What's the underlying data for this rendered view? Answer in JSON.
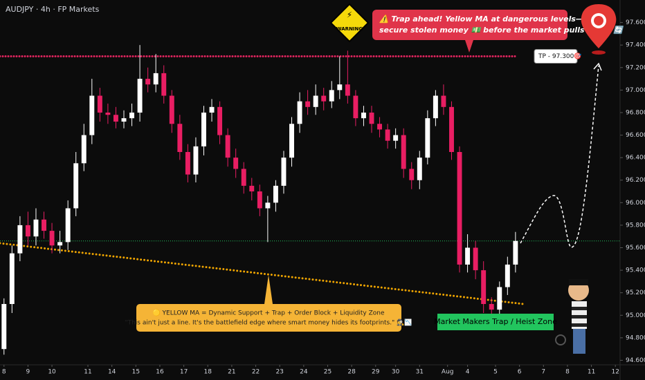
{
  "chart_data": {
    "type": "candlestick",
    "title": "AUDJPY · 4h · FP Markets",
    "up_color": "#ffffff",
    "down_color": "#e91e63",
    "x": [
      0,
      2,
      4,
      6,
      8,
      10,
      12,
      14,
      16,
      18,
      20,
      22,
      24,
      26,
      28,
      30,
      32,
      34,
      36,
      38,
      40,
      42,
      44,
      46,
      48,
      50,
      52,
      54,
      56,
      58,
      60,
      62,
      64,
      66,
      68,
      70,
      72,
      74,
      76,
      78,
      80,
      82,
      84,
      86,
      88,
      90,
      92,
      94,
      96,
      98,
      100,
      102,
      104,
      106,
      108,
      110,
      112,
      114,
      116,
      118,
      120,
      122,
      124,
      126,
      128
    ],
    "open": [
      94.7,
      95.1,
      95.55,
      95.8,
      95.7,
      95.85,
      95.75,
      95.62,
      95.65,
      95.95,
      96.35,
      96.6,
      96.95,
      96.8,
      96.78,
      96.72,
      96.75,
      96.8,
      97.1,
      97.05,
      97.15,
      96.95,
      96.7,
      96.45,
      96.25,
      96.5,
      96.8,
      96.85,
      96.6,
      96.4,
      96.3,
      96.15,
      96.1,
      95.95,
      96.0,
      96.15,
      96.4,
      96.7,
      96.9,
      96.85,
      96.95,
      96.9,
      97.0,
      97.05,
      96.95,
      96.75,
      96.8,
      96.7,
      96.65,
      96.55,
      96.6,
      96.3,
      96.2,
      96.4,
      96.75,
      96.95,
      96.85,
      96.45,
      95.45,
      95.6,
      95.4,
      95.1,
      95.05,
      95.25,
      95.45
    ],
    "high": [
      95.15,
      95.62,
      95.88,
      95.92,
      95.95,
      95.92,
      95.82,
      95.75,
      96.02,
      96.45,
      96.7,
      97.1,
      97.02,
      96.88,
      96.85,
      96.82,
      96.88,
      97.4,
      97.2,
      97.32,
      97.22,
      97.0,
      96.78,
      96.52,
      96.58,
      96.86,
      96.92,
      96.9,
      96.66,
      96.48,
      96.36,
      96.22,
      96.16,
      96.06,
      96.2,
      96.46,
      96.76,
      96.98,
      97.0,
      97.05,
      97.02,
      97.08,
      97.3,
      97.35,
      97.0,
      96.86,
      96.86,
      96.76,
      96.7,
      96.66,
      96.66,
      96.36,
      96.46,
      96.82,
      97.0,
      97.05,
      96.9,
      96.5,
      95.72,
      95.66,
      95.48,
      95.16,
      95.3,
      95.52,
      95.74
    ],
    "low": [
      94.65,
      95.02,
      95.48,
      95.62,
      95.62,
      95.68,
      95.55,
      95.55,
      95.58,
      95.88,
      96.28,
      96.52,
      96.72,
      96.7,
      96.66,
      96.66,
      96.68,
      96.72,
      96.98,
      96.98,
      96.88,
      96.62,
      96.38,
      96.18,
      96.18,
      96.42,
      96.72,
      96.52,
      96.32,
      96.22,
      96.08,
      96.02,
      95.88,
      95.65,
      95.92,
      96.08,
      96.32,
      96.62,
      96.78,
      96.78,
      96.82,
      96.84,
      96.92,
      96.88,
      96.68,
      96.68,
      96.62,
      96.58,
      96.48,
      96.48,
      96.22,
      96.12,
      96.12,
      96.34,
      96.68,
      96.78,
      96.38,
      95.38,
      95.38,
      95.32,
      95.02,
      95.0,
      95.0,
      95.18,
      95.38
    ],
    "close": [
      95.1,
      95.55,
      95.8,
      95.7,
      95.85,
      95.75,
      95.62,
      95.65,
      95.95,
      96.35,
      96.6,
      96.95,
      96.8,
      96.78,
      96.72,
      96.75,
      96.8,
      97.1,
      97.05,
      97.15,
      96.95,
      96.7,
      96.45,
      96.25,
      96.5,
      96.8,
      96.85,
      96.6,
      96.4,
      96.3,
      96.15,
      96.1,
      95.95,
      96.0,
      96.15,
      96.4,
      96.7,
      96.9,
      96.85,
      96.95,
      96.9,
      97.0,
      97.05,
      96.95,
      96.75,
      96.8,
      96.7,
      96.65,
      96.55,
      96.6,
      96.3,
      96.2,
      96.4,
      96.75,
      96.95,
      96.85,
      96.45,
      95.45,
      95.6,
      95.4,
      95.1,
      95.05,
      95.25,
      95.45,
      95.66
    ],
    "xlim": [
      -1,
      154
    ],
    "xticks": [
      {
        "value": 0,
        "label": "8"
      },
      {
        "value": 6,
        "label": "9"
      },
      {
        "value": 12,
        "label": "10"
      },
      {
        "value": 21,
        "label": "11"
      },
      {
        "value": 27,
        "label": "14"
      },
      {
        "value": 33,
        "label": "15"
      },
      {
        "value": 39,
        "label": "16"
      },
      {
        "value": 45,
        "label": "17"
      },
      {
        "value": 51,
        "label": "18"
      },
      {
        "value": 57,
        "label": "21"
      },
      {
        "value": 63,
        "label": "22"
      },
      {
        "value": 69,
        "label": "23"
      },
      {
        "value": 75,
        "label": "24"
      },
      {
        "value": 81,
        "label": "25"
      },
      {
        "value": 87,
        "label": "28"
      },
      {
        "value": 93,
        "label": "29"
      },
      {
        "value": 98,
        "label": "30"
      },
      {
        "value": 104,
        "label": "31"
      },
      {
        "value": 111,
        "label": "Aug"
      },
      {
        "value": 116,
        "label": "4"
      },
      {
        "value": 123,
        "label": "5"
      },
      {
        "value": 129,
        "label": "6"
      },
      {
        "value": 135,
        "label": "7"
      },
      {
        "value": 141,
        "label": "8"
      },
      {
        "value": 147,
        "label": "11"
      },
      {
        "value": 153,
        "label": "12"
      }
    ],
    "ylim": [
      94.56,
      97.8
    ],
    "yticks": [
      {
        "value": 94.6,
        "label": "94.600"
      },
      {
        "value": 94.8,
        "label": "94.800"
      },
      {
        "value": 95,
        "label": "95.000"
      },
      {
        "value": 95.2,
        "label": "95.200"
      },
      {
        "value": 95.4,
        "label": "95.400"
      },
      {
        "value": 95.6,
        "label": "95.600"
      },
      {
        "value": 95.8,
        "label": "95.800"
      },
      {
        "value": 96,
        "label": "96.000"
      },
      {
        "value": 96.2,
        "label": "96.200"
      },
      {
        "value": 96.4,
        "label": "96.400"
      },
      {
        "value": 96.6,
        "label": "96.600"
      },
      {
        "value": 96.8,
        "label": "96.800"
      },
      {
        "value": 97,
        "label": "97.000"
      },
      {
        "value": 97.2,
        "label": "97.200"
      },
      {
        "value": 97.4,
        "label": "97.400"
      },
      {
        "value": 97.6,
        "label": "97.600"
      }
    ],
    "tp_level": 97.3,
    "tp_label": "TP - 97.300🎯",
    "tp_color": "#e0245e",
    "last_price": 95.66,
    "ma": {
      "x": [
        -1,
        130
      ],
      "values": [
        95.64,
        95.1
      ],
      "color": "#f0a500"
    },
    "warning": "WARNING",
    "callout": [
      "⚠️ Trap ahead! Yellow MA at dangerous levels—",
      "secure stolen money 💵 before the market pulls back! 🔄"
    ],
    "note": [
      "🟡 YELLOW MA = Dynamic Support + Trap + Order Block + Liquidity Zone",
      "\"This ain't just a line. It's the battlefield edge where smart money hides its footprints.\" 🕵️📉"
    ],
    "zone": "Market Makers Trap / Heist Zone"
  }
}
